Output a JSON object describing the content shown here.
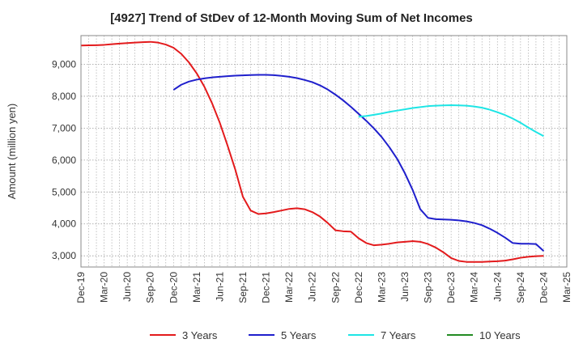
{
  "chart_data": {
    "type": "line",
    "title": "[4927]  Trend of StDev of 12-Month Moving Sum of Net Incomes",
    "ylabel": "Amount (million yen)",
    "xlabel": "",
    "ylim": [
      2650,
      9900
    ],
    "y_ticks": [
      3000,
      4000,
      5000,
      6000,
      7000,
      8000,
      9000
    ],
    "y_tick_labels": [
      "3,000",
      "4,000",
      "5,000",
      "6,000",
      "7,000",
      "8,000",
      "9,000"
    ],
    "x_range": [
      "2019-12",
      "2025-03"
    ],
    "x_tick_labels": [
      "Dec-19",
      "Mar-20",
      "Jun-20",
      "Sep-20",
      "Dec-20",
      "Mar-21",
      "Jun-21",
      "Sep-21",
      "Dec-21",
      "Mar-22",
      "Jun-22",
      "Sep-22",
      "Dec-22",
      "Mar-23",
      "Jun-23",
      "Sep-23",
      "Dec-23",
      "Mar-24",
      "Jun-24",
      "Sep-24",
      "Dec-24",
      "Mar-25"
    ],
    "grid": true,
    "legend_position": "bottom",
    "series": [
      {
        "name": "3 Years",
        "color": "#e31a1c",
        "points": [
          [
            "2019-12",
            9590
          ],
          [
            "2020-01",
            9595
          ],
          [
            "2020-02",
            9600
          ],
          [
            "2020-03",
            9610
          ],
          [
            "2020-04",
            9630
          ],
          [
            "2020-05",
            9650
          ],
          [
            "2020-06",
            9665
          ],
          [
            "2020-07",
            9680
          ],
          [
            "2020-08",
            9695
          ],
          [
            "2020-09",
            9705
          ],
          [
            "2020-10",
            9680
          ],
          [
            "2020-11",
            9620
          ],
          [
            "2020-12",
            9520
          ],
          [
            "2021-01",
            9330
          ],
          [
            "2021-02",
            9060
          ],
          [
            "2021-03",
            8720
          ],
          [
            "2021-04",
            8300
          ],
          [
            "2021-05",
            7780
          ],
          [
            "2021-06",
            7170
          ],
          [
            "2021-07",
            6460
          ],
          [
            "2021-08",
            5710
          ],
          [
            "2021-09",
            4850
          ],
          [
            "2021-10",
            4420
          ],
          [
            "2021-11",
            4310
          ],
          [
            "2021-12",
            4330
          ],
          [
            "2022-01",
            4370
          ],
          [
            "2022-02",
            4420
          ],
          [
            "2022-03",
            4470
          ],
          [
            "2022-04",
            4490
          ],
          [
            "2022-05",
            4460
          ],
          [
            "2022-06",
            4370
          ],
          [
            "2022-07",
            4230
          ],
          [
            "2022-08",
            4030
          ],
          [
            "2022-09",
            3800
          ],
          [
            "2022-10",
            3770
          ],
          [
            "2022-11",
            3760
          ],
          [
            "2022-12",
            3550
          ],
          [
            "2023-01",
            3400
          ],
          [
            "2023-02",
            3330
          ],
          [
            "2023-03",
            3350
          ],
          [
            "2023-04",
            3380
          ],
          [
            "2023-05",
            3420
          ],
          [
            "2023-06",
            3440
          ],
          [
            "2023-07",
            3460
          ],
          [
            "2023-08",
            3440
          ],
          [
            "2023-09",
            3370
          ],
          [
            "2023-10",
            3260
          ],
          [
            "2023-11",
            3110
          ],
          [
            "2023-12",
            2930
          ],
          [
            "2024-01",
            2840
          ],
          [
            "2024-02",
            2810
          ],
          [
            "2024-03",
            2810
          ],
          [
            "2024-04",
            2810
          ],
          [
            "2024-05",
            2820
          ],
          [
            "2024-06",
            2830
          ],
          [
            "2024-07",
            2850
          ],
          [
            "2024-08",
            2890
          ],
          [
            "2024-09",
            2940
          ],
          [
            "2024-10",
            2970
          ],
          [
            "2024-11",
            2990
          ],
          [
            "2024-12",
            3000
          ]
        ]
      },
      {
        "name": "5 Years",
        "color": "#1f1fcc",
        "points": [
          [
            "2020-12",
            8200
          ],
          [
            "2021-01",
            8360
          ],
          [
            "2021-02",
            8460
          ],
          [
            "2021-03",
            8520
          ],
          [
            "2021-04",
            8560
          ],
          [
            "2021-05",
            8590
          ],
          [
            "2021-06",
            8610
          ],
          [
            "2021-07",
            8630
          ],
          [
            "2021-08",
            8645
          ],
          [
            "2021-09",
            8655
          ],
          [
            "2021-10",
            8665
          ],
          [
            "2021-11",
            8670
          ],
          [
            "2021-12",
            8670
          ],
          [
            "2022-01",
            8660
          ],
          [
            "2022-02",
            8640
          ],
          [
            "2022-03",
            8610
          ],
          [
            "2022-04",
            8570
          ],
          [
            "2022-05",
            8510
          ],
          [
            "2022-06",
            8440
          ],
          [
            "2022-07",
            8340
          ],
          [
            "2022-08",
            8210
          ],
          [
            "2022-09",
            8050
          ],
          [
            "2022-10",
            7870
          ],
          [
            "2022-11",
            7670
          ],
          [
            "2022-12",
            7450
          ],
          [
            "2023-01",
            7230
          ],
          [
            "2023-02",
            6990
          ],
          [
            "2023-03",
            6720
          ],
          [
            "2023-04",
            6400
          ],
          [
            "2023-05",
            6040
          ],
          [
            "2023-06",
            5590
          ],
          [
            "2023-07",
            5070
          ],
          [
            "2023-08",
            4460
          ],
          [
            "2023-09",
            4190
          ],
          [
            "2023-10",
            4150
          ],
          [
            "2023-11",
            4140
          ],
          [
            "2023-12",
            4130
          ],
          [
            "2024-01",
            4110
          ],
          [
            "2024-02",
            4080
          ],
          [
            "2024-03",
            4030
          ],
          [
            "2024-04",
            3960
          ],
          [
            "2024-05",
            3850
          ],
          [
            "2024-06",
            3720
          ],
          [
            "2024-07",
            3570
          ],
          [
            "2024-08",
            3400
          ],
          [
            "2024-09",
            3380
          ],
          [
            "2024-10",
            3380
          ],
          [
            "2024-11",
            3370
          ],
          [
            "2024-12",
            3150
          ]
        ]
      },
      {
        "name": "7 Years",
        "color": "#1ee5e5",
        "points": [
          [
            "2022-12",
            7360
          ],
          [
            "2023-01",
            7380
          ],
          [
            "2023-02",
            7420
          ],
          [
            "2023-03",
            7460
          ],
          [
            "2023-04",
            7510
          ],
          [
            "2023-05",
            7550
          ],
          [
            "2023-06",
            7590
          ],
          [
            "2023-07",
            7630
          ],
          [
            "2023-08",
            7660
          ],
          [
            "2023-09",
            7690
          ],
          [
            "2023-10",
            7705
          ],
          [
            "2023-11",
            7715
          ],
          [
            "2023-12",
            7720
          ],
          [
            "2024-01",
            7715
          ],
          [
            "2024-02",
            7705
          ],
          [
            "2024-03",
            7680
          ],
          [
            "2024-04",
            7640
          ],
          [
            "2024-05",
            7580
          ],
          [
            "2024-06",
            7500
          ],
          [
            "2024-07",
            7410
          ],
          [
            "2024-08",
            7300
          ],
          [
            "2024-09",
            7170
          ],
          [
            "2024-10",
            7020
          ],
          [
            "2024-11",
            6880
          ],
          [
            "2024-12",
            6750
          ]
        ]
      },
      {
        "name": "10 Years",
        "color": "#228b22",
        "points": []
      }
    ]
  }
}
